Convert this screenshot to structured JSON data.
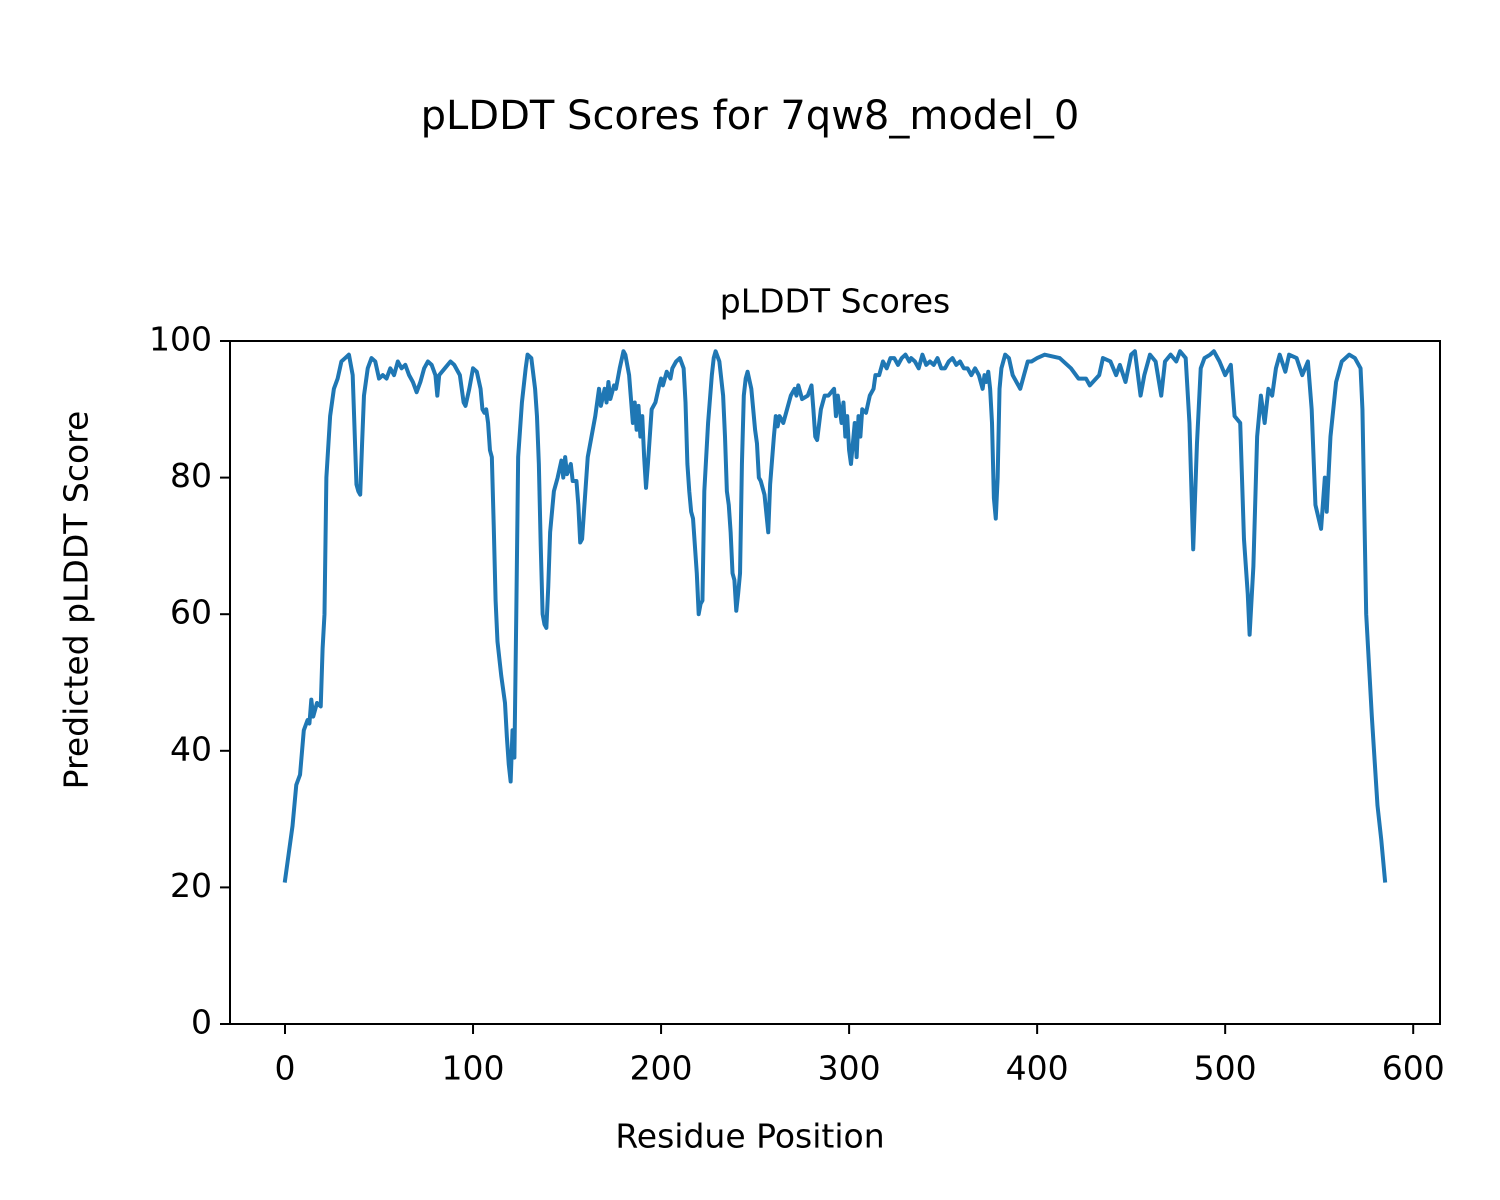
{
  "chart_data": {
    "type": "line",
    "title": "pLDDT Scores for 7qw8_model_0",
    "subtitle": "pLDDT Scores",
    "x_label": "Residue Position",
    "y_label": "Predicted pLDDT Score",
    "color": "#1f77b4",
    "x": [
      0,
      2,
      4,
      6,
      8,
      10,
      12,
      13,
      14,
      15,
      17,
      19,
      20,
      21,
      22,
      24,
      26,
      28,
      30,
      32,
      34,
      36,
      38,
      39,
      40,
      41,
      42,
      44,
      46,
      48,
      50,
      52,
      54,
      56,
      58,
      60,
      62,
      64,
      66,
      68,
      70,
      72,
      74,
      76,
      78,
      80,
      81,
      82,
      85,
      88,
      90,
      93,
      95,
      96,
      98,
      100,
      102,
      104,
      105,
      106,
      107,
      108,
      109,
      110,
      111,
      112,
      113,
      115,
      117,
      118,
      119,
      120,
      121,
      122,
      123,
      124,
      126,
      128,
      129,
      131,
      133,
      134,
      135,
      136,
      137,
      138,
      139,
      140,
      141,
      143,
      145,
      147,
      148,
      149,
      150,
      152,
      153,
      155,
      156,
      157,
      158,
      159,
      161,
      163,
      165,
      167,
      168,
      170,
      171,
      172,
      173,
      175,
      176,
      178,
      180,
      181,
      183,
      185,
      186,
      187,
      188,
      189,
      190,
      191,
      192,
      193,
      195,
      197,
      199,
      200,
      201,
      203,
      205,
      206,
      208,
      210,
      212,
      213,
      214,
      215,
      216,
      217,
      219,
      220,
      221,
      222,
      223,
      225,
      227,
      228,
      229,
      231,
      233,
      234,
      235,
      236,
      237,
      238,
      239,
      240,
      241,
      242,
      243,
      244,
      245,
      246,
      248,
      249,
      250,
      251,
      252,
      253,
      255,
      257,
      258,
      260,
      261,
      262,
      263,
      265,
      267,
      269,
      271,
      272,
      273,
      275,
      278,
      280,
      281,
      282,
      283,
      285,
      287,
      289,
      292,
      293,
      294,
      296,
      297,
      298,
      299,
      300,
      301,
      303,
      304,
      305,
      306,
      307,
      309,
      311,
      313,
      314,
      316,
      318,
      320,
      322,
      324,
      326,
      328,
      330,
      332,
      333,
      335,
      337,
      339,
      341,
      343,
      345,
      347,
      349,
      351,
      353,
      355,
      357,
      359,
      361,
      363,
      365,
      367,
      369,
      371,
      372,
      373,
      374,
      375,
      376,
      377,
      378,
      379,
      380,
      381,
      383,
      385,
      387,
      389,
      391,
      393,
      395,
      397,
      400,
      404,
      412,
      418,
      422,
      426,
      428,
      433,
      435,
      439,
      442,
      444,
      447,
      450,
      452,
      455,
      457,
      460,
      463,
      466,
      468,
      471,
      474,
      476,
      479,
      481,
      483,
      485,
      487,
      489,
      492,
      494,
      497,
      500,
      503,
      505,
      508,
      510,
      512,
      513,
      515,
      517,
      519,
      521,
      523,
      525,
      527,
      529,
      532,
      534,
      538,
      541,
      544,
      546,
      548,
      551,
      553,
      554,
      556,
      559,
      562,
      566,
      569,
      572,
      573,
      575,
      578,
      581,
      583,
      585
    ],
    "values": [
      21,
      25,
      29,
      35,
      36.5,
      43,
      44.5,
      44,
      47.5,
      45,
      47,
      46.5,
      55,
      60,
      80,
      89,
      93,
      94.5,
      97,
      97.5,
      98,
      95,
      79,
      78,
      77.5,
      85,
      92,
      96,
      97.5,
      97,
      94.5,
      95,
      94.5,
      96,
      95,
      97,
      96,
      96.5,
      95,
      94,
      92.5,
      94,
      96,
      97,
      96.5,
      95,
      92,
      95,
      96,
      97,
      96.5,
      95,
      91,
      90.5,
      93,
      96,
      95.5,
      93,
      90,
      89.5,
      90,
      88,
      84,
      83,
      73,
      62,
      56,
      51,
      47,
      42,
      38,
      35.5,
      43,
      39,
      60,
      83,
      91,
      96,
      98,
      97.5,
      93,
      89,
      82,
      70,
      60,
      58.5,
      58,
      64,
      72,
      78,
      80,
      82.5,
      80,
      83,
      80.5,
      82,
      79.5,
      79.5,
      76,
      70.5,
      71,
      75,
      83,
      86,
      89,
      93,
      90.5,
      93,
      91,
      94,
      91.5,
      93.5,
      93,
      96,
      98.5,
      98,
      95,
      88,
      91,
      87,
      90.5,
      86,
      89,
      83,
      78.5,
      82,
      90,
      91,
      93.5,
      94.5,
      93.5,
      95.5,
      94.5,
      96,
      97,
      97.5,
      96,
      91,
      82,
      78,
      75,
      74,
      66,
      60,
      61.5,
      62,
      78,
      88,
      95,
      97.5,
      98.5,
      97,
      92,
      86,
      78,
      76,
      72,
      66,
      65,
      60.5,
      63,
      66,
      82,
      92,
      94.5,
      95.5,
      93,
      90,
      87,
      85,
      80,
      79.5,
      77.5,
      72,
      79,
      86,
      89,
      87.5,
      89,
      88,
      90,
      92,
      93,
      92,
      93.5,
      91.5,
      92,
      93.5,
      90,
      86,
      85.5,
      90,
      92,
      92,
      93,
      89,
      92,
      88,
      91,
      86,
      89,
      84,
      82,
      88,
      83,
      89,
      86,
      90,
      89.5,
      92,
      93,
      95,
      95,
      97,
      96,
      97.5,
      97.5,
      96.5,
      97.5,
      98,
      97,
      97.5,
      97,
      96,
      98,
      96.5,
      97,
      96.5,
      97.5,
      96,
      96,
      97,
      97.5,
      96.5,
      97,
      96,
      96,
      95,
      96,
      95,
      93,
      95,
      94,
      95.5,
      93,
      88,
      77,
      74,
      80,
      93,
      96,
      98,
      97.5,
      95,
      94,
      93,
      95,
      97,
      97,
      97.5,
      98,
      97.5,
      96,
      94.5,
      94.5,
      93.5,
      95,
      97.5,
      97,
      95,
      96.5,
      94,
      98,
      98.5,
      92,
      95,
      98,
      97,
      92,
      97,
      98,
      97,
      98.5,
      97.5,
      88,
      69.5,
      85,
      96,
      97.5,
      98,
      98.5,
      97,
      95,
      96.5,
      89,
      88,
      71,
      63,
      57,
      67,
      86,
      92,
      88,
      93,
      92,
      96,
      98,
      95.5,
      98,
      97.5,
      95,
      97,
      90,
      76,
      72.5,
      80,
      75,
      86,
      94,
      97,
      98,
      97.5,
      96,
      90,
      60,
      45,
      32,
      27,
      21
    ],
    "xlim": [
      -29.25,
      614.25
    ],
    "ylim": [
      0,
      100
    ],
    "xticks": [
      0,
      100,
      200,
      300,
      400,
      500,
      600
    ],
    "yticks": [
      0,
      20,
      40,
      60,
      80,
      100
    ],
    "grid": false
  }
}
